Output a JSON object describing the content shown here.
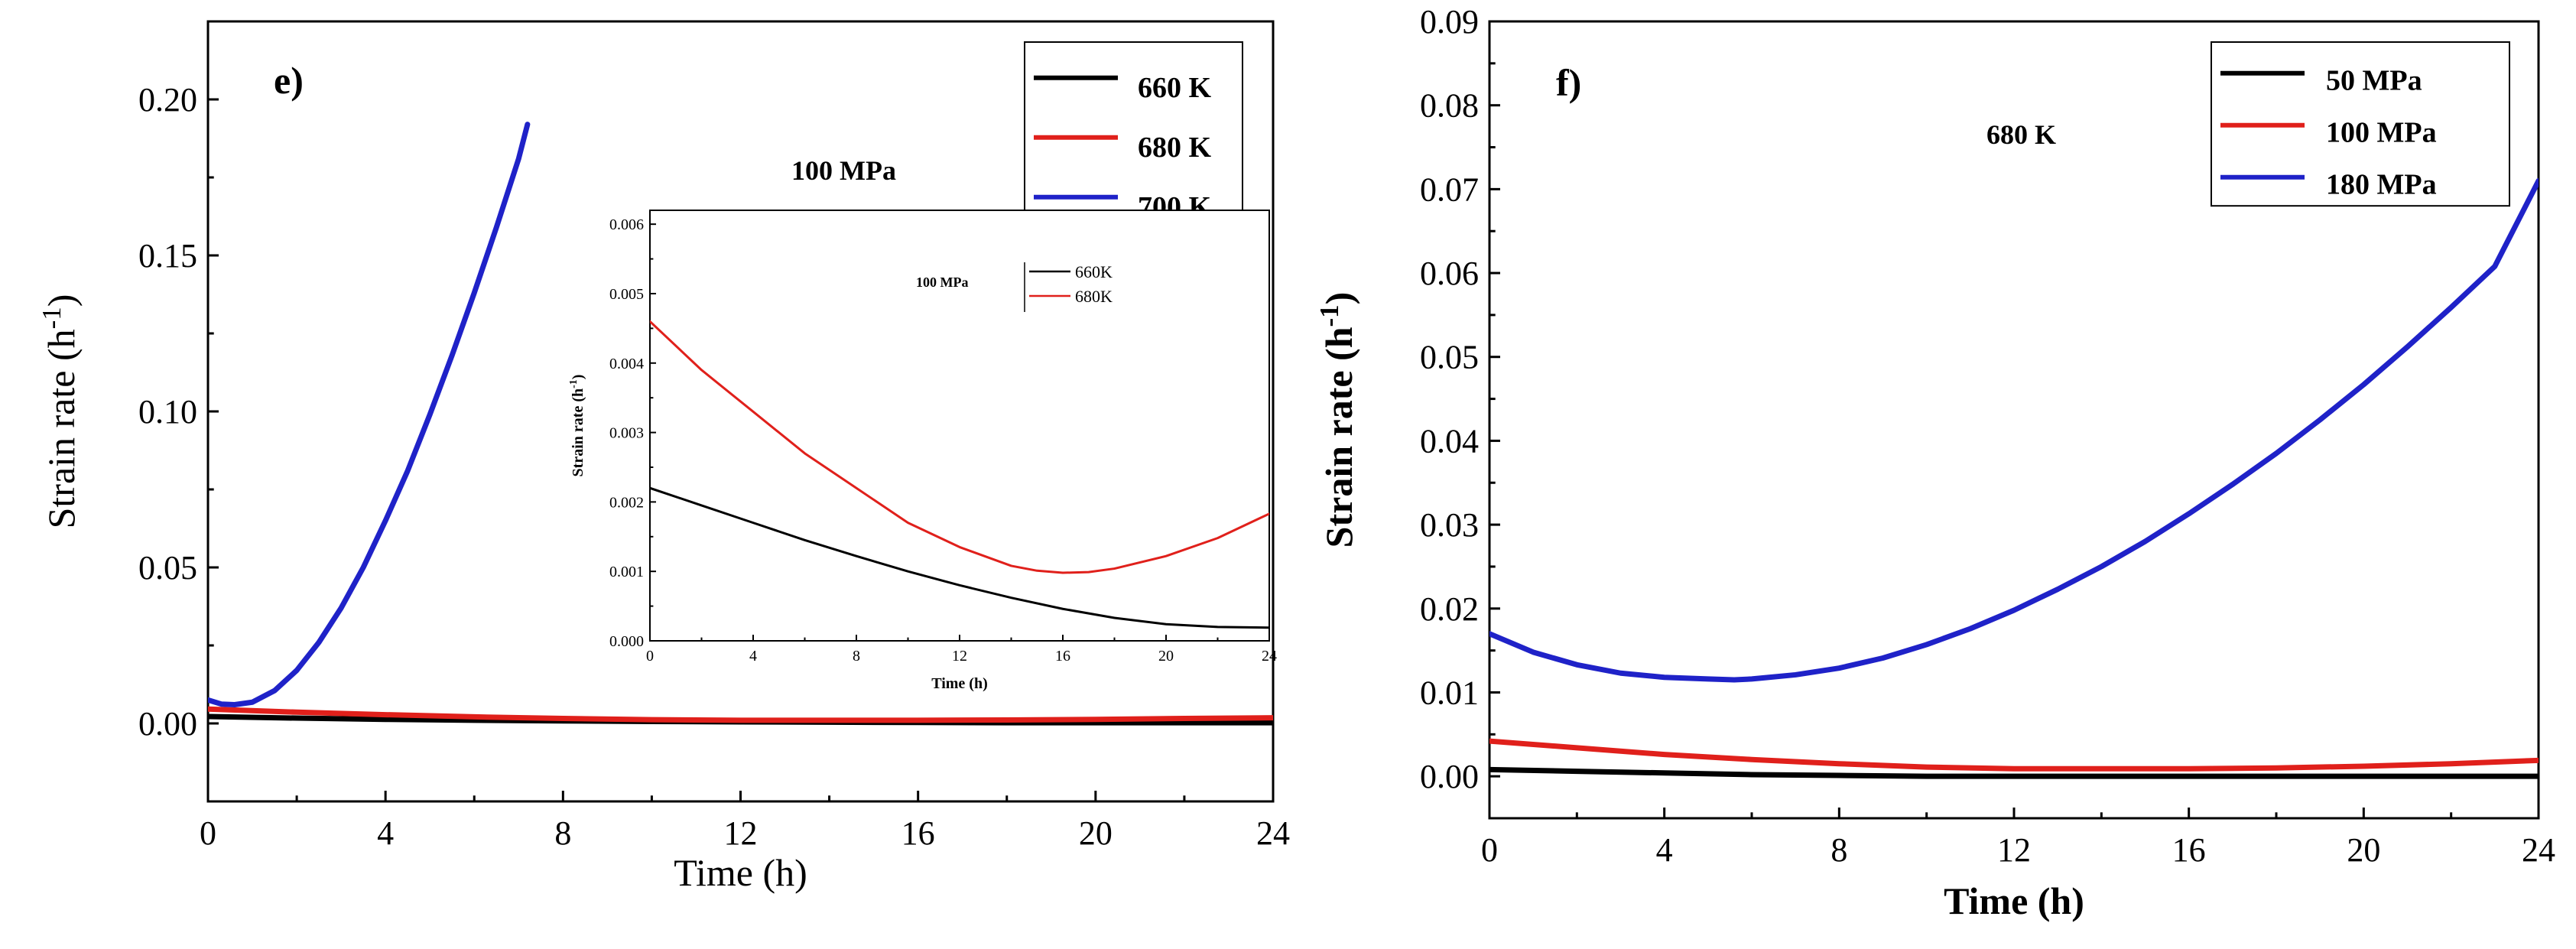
{
  "chart_data": [
    {
      "id": "e",
      "type": "line",
      "panel_label": "e)",
      "annotation": "100 MPa",
      "xlabel": "Time (h)",
      "ylabel_main": "Strain rate (h",
      "ylabel_sup": "-1",
      "ylabel_end": ")",
      "xlim": [
        0,
        24
      ],
      "ylim": [
        -0.025,
        0.225
      ],
      "xticks": [
        0,
        4,
        8,
        12,
        16,
        20,
        24
      ],
      "xtick_labels": [
        "0",
        "4",
        "8",
        "12",
        "16",
        "20",
        "24"
      ],
      "yticks": [
        0.0,
        0.05,
        0.1,
        0.15,
        0.2
      ],
      "ytick_labels": [
        "0.00",
        "0.05",
        "0.10",
        "0.15",
        "0.20"
      ],
      "legend_position": "top-right",
      "series": [
        {
          "name": "660 K",
          "color": "#000000",
          "x": [
            0,
            2,
            4,
            6,
            8,
            10,
            12,
            14,
            16,
            18,
            20,
            22,
            24
          ],
          "y": [
            0.0022,
            0.0017,
            0.0013,
            0.001,
            0.0008,
            0.0006,
            0.0005,
            0.0004,
            0.0003,
            0.0002,
            0.0002,
            0.0002,
            0.0002
          ]
        },
        {
          "name": "680 K",
          "color": "#e0201b",
          "x": [
            0,
            2,
            4,
            6,
            8,
            10,
            12,
            14,
            16,
            18,
            20,
            22,
            24
          ],
          "y": [
            0.0046,
            0.0036,
            0.0028,
            0.0021,
            0.0016,
            0.0012,
            0.001,
            0.001,
            0.001,
            0.0011,
            0.0013,
            0.0016,
            0.0018
          ]
        },
        {
          "name": "700 K",
          "color": "#1f22c8",
          "x": [
            0,
            0.3,
            0.6,
            1,
            1.5,
            2,
            2.5,
            3,
            3.5,
            4,
            4.5,
            5,
            5.5,
            6,
            6.5,
            7,
            7.2
          ],
          "y": [
            0.0075,
            0.0062,
            0.006,
            0.0068,
            0.0105,
            0.017,
            0.026,
            0.037,
            0.05,
            0.065,
            0.081,
            0.099,
            0.118,
            0.138,
            0.159,
            0.181,
            0.192
          ]
        }
      ],
      "inset": {
        "annotation": "100 MPa",
        "xlabel": "Time (h)",
        "ylabel_main": "Strain rate (h",
        "ylabel_sup": "-1",
        "ylabel_end": ")",
        "xlim": [
          0,
          24
        ],
        "ylim": [
          0,
          0.0062
        ],
        "xticks": [
          0,
          4,
          8,
          12,
          16,
          20,
          24
        ],
        "xtick_labels": [
          "0",
          "4",
          "8",
          "12",
          "16",
          "20",
          "24"
        ],
        "yticks": [
          0,
          0.001,
          0.002,
          0.003,
          0.004,
          0.005,
          0.006
        ],
        "ytick_labels": [
          "0.000",
          "0.001",
          "0.002",
          "0.003",
          "0.004",
          "0.005",
          "0.006"
        ],
        "series": [
          {
            "name": "660K",
            "color": "#000000",
            "x": [
              0,
              2,
              4,
              6,
              8,
              10,
              12,
              14,
              16,
              18,
              20,
              22,
              24
            ],
            "y": [
              0.0022,
              0.00195,
              0.0017,
              0.00145,
              0.00122,
              0.001,
              0.0008,
              0.00062,
              0.00046,
              0.00033,
              0.00024,
              0.0002,
              0.00019
            ]
          },
          {
            "name": "680K",
            "color": "#e0201b",
            "x": [
              0,
              2,
              4,
              6,
              8,
              10,
              12,
              14,
              15,
              16,
              17,
              18,
              20,
              22,
              24
            ],
            "y": [
              0.0046,
              0.0039,
              0.0033,
              0.0027,
              0.0022,
              0.0017,
              0.00135,
              0.00108,
              0.00101,
              0.00098,
              0.00099,
              0.00104,
              0.00122,
              0.00148,
              0.00183
            ]
          }
        ]
      }
    },
    {
      "id": "f",
      "type": "line",
      "panel_label": "f)",
      "annotation": "680 K",
      "xlabel": "Time (h)",
      "ylabel_main": "Strain rate (h",
      "ylabel_sup": "-1",
      "ylabel_end": ")",
      "xlim": [
        0,
        24
      ],
      "ylim": [
        -0.005,
        0.09
      ],
      "xticks": [
        0,
        4,
        8,
        12,
        16,
        20,
        24
      ],
      "xtick_labels": [
        "0",
        "4",
        "8",
        "12",
        "16",
        "20",
        "24"
      ],
      "yticks": [
        0.0,
        0.01,
        0.02,
        0.03,
        0.04,
        0.05,
        0.06,
        0.07,
        0.08,
        0.09
      ],
      "ytick_labels": [
        "0.00",
        "0.01",
        "0.02",
        "0.03",
        "0.04",
        "0.05",
        "0.06",
        "0.07",
        "0.08",
        "0.09"
      ],
      "legend_position": "top-right",
      "series": [
        {
          "name": "50 MPa",
          "color": "#000000",
          "x": [
            0,
            2,
            4,
            6,
            8,
            10,
            12,
            14,
            16,
            18,
            20,
            22,
            24
          ],
          "y": [
            0.0008,
            0.0006,
            0.0004,
            0.0002,
            0.0001,
            0.0,
            0.0,
            0.0,
            0.0,
            0.0,
            0.0,
            0.0,
            0.0
          ]
        },
        {
          "name": "100 MPa",
          "color": "#e0201b",
          "x": [
            0,
            2,
            4,
            6,
            8,
            10,
            12,
            14,
            16,
            18,
            20,
            22,
            24
          ],
          "y": [
            0.0042,
            0.0034,
            0.0026,
            0.002,
            0.0015,
            0.0011,
            0.0009,
            0.0009,
            0.0009,
            0.001,
            0.0012,
            0.0015,
            0.0019
          ]
        },
        {
          "name": "180 MPa",
          "color": "#1f22c8",
          "x": [
            0,
            1,
            2,
            3,
            4,
            5,
            5.6,
            6,
            7,
            8,
            9,
            10,
            11,
            12,
            13,
            14,
            15,
            16,
            17,
            18,
            19,
            20,
            21,
            22,
            23,
            24
          ],
          "y": [
            0.017,
            0.0148,
            0.0133,
            0.0123,
            0.0118,
            0.0116,
            0.0115,
            0.0116,
            0.0121,
            0.0129,
            0.0141,
            0.0157,
            0.0176,
            0.0198,
            0.0223,
            0.025,
            0.028,
            0.0313,
            0.0348,
            0.0385,
            0.0425,
            0.0467,
            0.0512,
            0.0559,
            0.0608,
            0.071
          ]
        }
      ]
    }
  ]
}
